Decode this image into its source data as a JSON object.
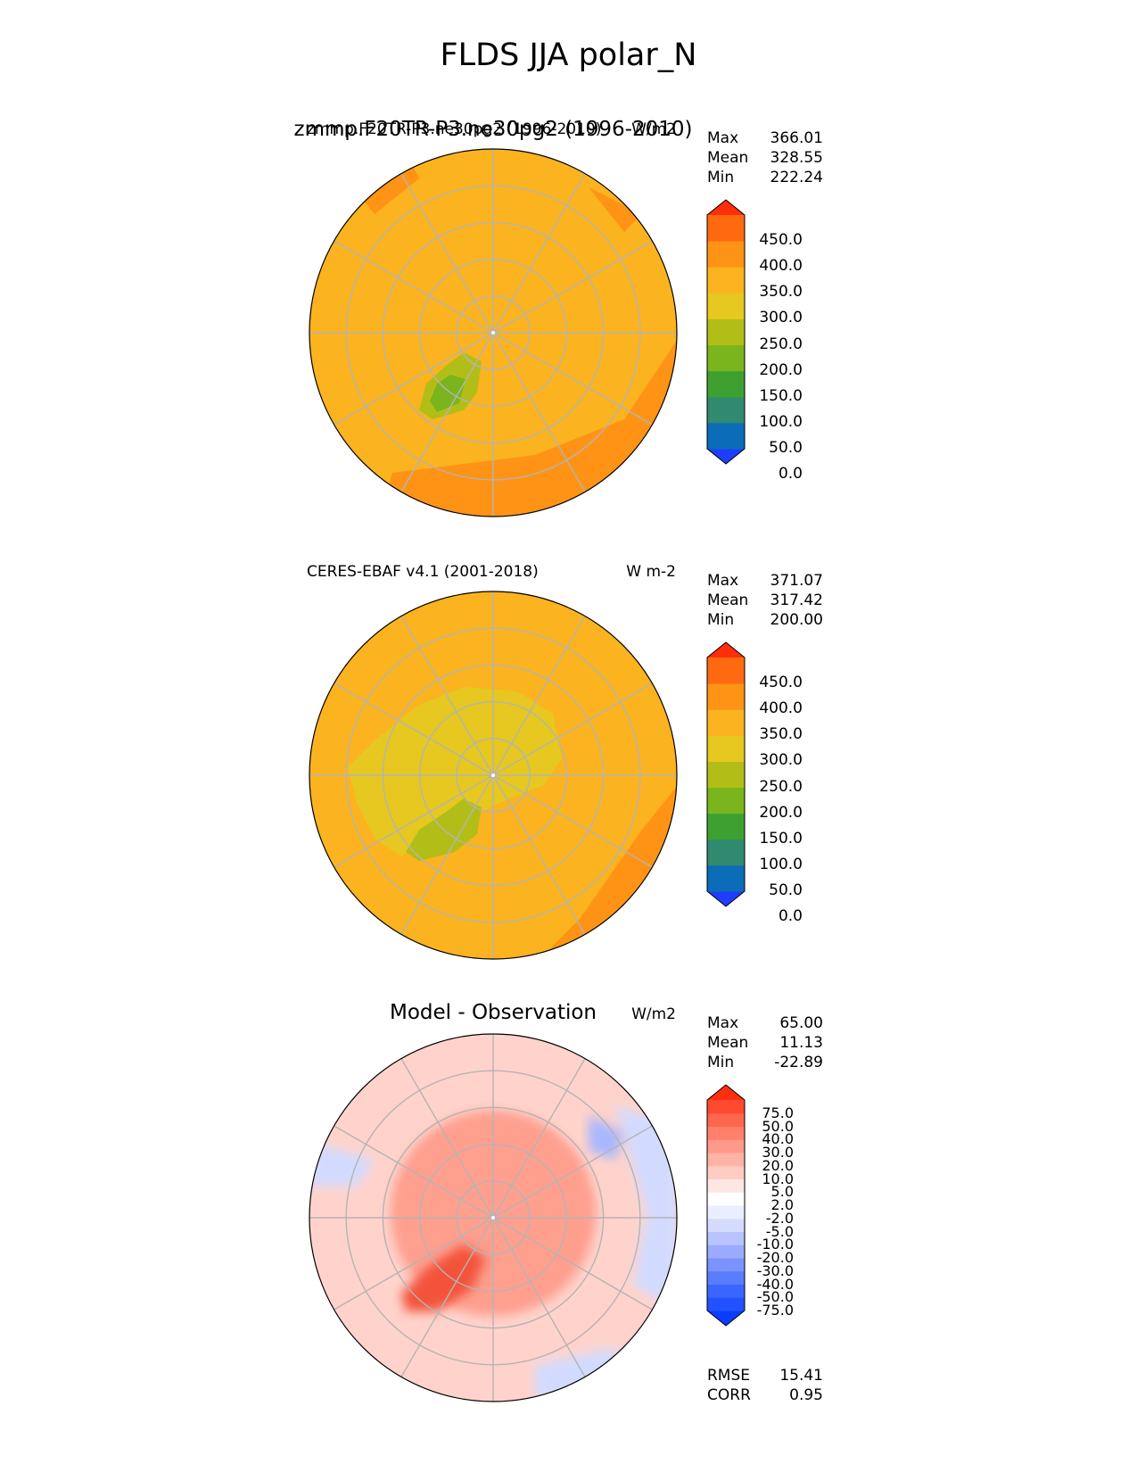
{
  "figure": {
    "title": "FLDS JJA polar_N"
  },
  "panels": [
    {
      "left_title": "zmmp.F20TR-P3.ne30pg2 (1996-2010)",
      "center_title": "zmmp.F20TR-P3.ne30pg2 (1996-2010)",
      "units": "W/m2",
      "stats": {
        "max": "366.01",
        "mean": "328.55",
        "min": "222.24"
      },
      "colorbar": {
        "ticks": [
          "450.0",
          "400.0",
          "350.0",
          "300.0",
          "250.0",
          "200.0",
          "150.0",
          "100.0",
          "50.0",
          "0.0"
        ],
        "colors": [
          "#1f3dff",
          "#0b6cb8",
          "#2f8a6f",
          "#3fa032",
          "#7ab51d",
          "#b2be18",
          "#e6c820",
          "#fbb31f",
          "#ff9315",
          "#ff6a10",
          "#ff2e0a"
        ]
      },
      "field_colors": {
        "ocean": "#fbb31f",
        "warm": "#ff9315",
        "greenland": "#b2be18",
        "greenland_core": "#7ab51d",
        "cool": "#e6c820"
      }
    },
    {
      "left_title": "CERES-EBAF v4.1 (2001-2018)",
      "units": "W m-2",
      "stats": {
        "max": "371.07",
        "mean": "317.42",
        "min": "200.00"
      },
      "colorbar": {
        "ticks": [
          "450.0",
          "400.0",
          "350.0",
          "300.0",
          "250.0",
          "200.0",
          "150.0",
          "100.0",
          "50.0",
          "0.0"
        ],
        "colors": [
          "#1f3dff",
          "#0b6cb8",
          "#2f8a6f",
          "#3fa032",
          "#7ab51d",
          "#b2be18",
          "#e6c820",
          "#fbb31f",
          "#ff9315",
          "#ff6a10",
          "#ff2e0a"
        ]
      },
      "field_colors": {
        "ocean": "#fbb31f",
        "warm": "#ff9315",
        "greenland": "#b2be18",
        "cool": "#e6c820"
      }
    },
    {
      "center_title": "Model - Observation",
      "units": "W/m2",
      "stats": {
        "max": "65.00",
        "mean": "11.13",
        "min": "-22.89"
      },
      "colorbar": {
        "ticks": [
          "75.0",
          "50.0",
          "40.0",
          "30.0",
          "20.0",
          "10.0",
          "5.0",
          "2.0",
          "-2.0",
          "-5.0",
          "-10.0",
          "-20.0",
          "-30.0",
          "-40.0",
          "-50.0",
          "-75.0"
        ],
        "colors": [
          "#0b3dff",
          "#2252ff",
          "#3a66ff",
          "#5a7cff",
          "#7b93ff",
          "#9aabff",
          "#b8c3ff",
          "#d4dbff",
          "#ebeeff",
          "#ffffff",
          "#ffe6e2",
          "#ffccc4",
          "#ffb3a6",
          "#ff9a88",
          "#ff806b",
          "#ff664e",
          "#ff4a30",
          "#ff2e10"
        ]
      },
      "field_colors": {
        "base": "#ffd3cb",
        "mid": "#ff9f8e",
        "strong": "#f3533a",
        "cool": "#d2dbff",
        "cold": "#a8b7ff"
      },
      "metrics": {
        "rmse_label": "RMSE",
        "rmse": "15.41",
        "corr_label": "CORR",
        "corr": "0.95"
      }
    }
  ]
}
